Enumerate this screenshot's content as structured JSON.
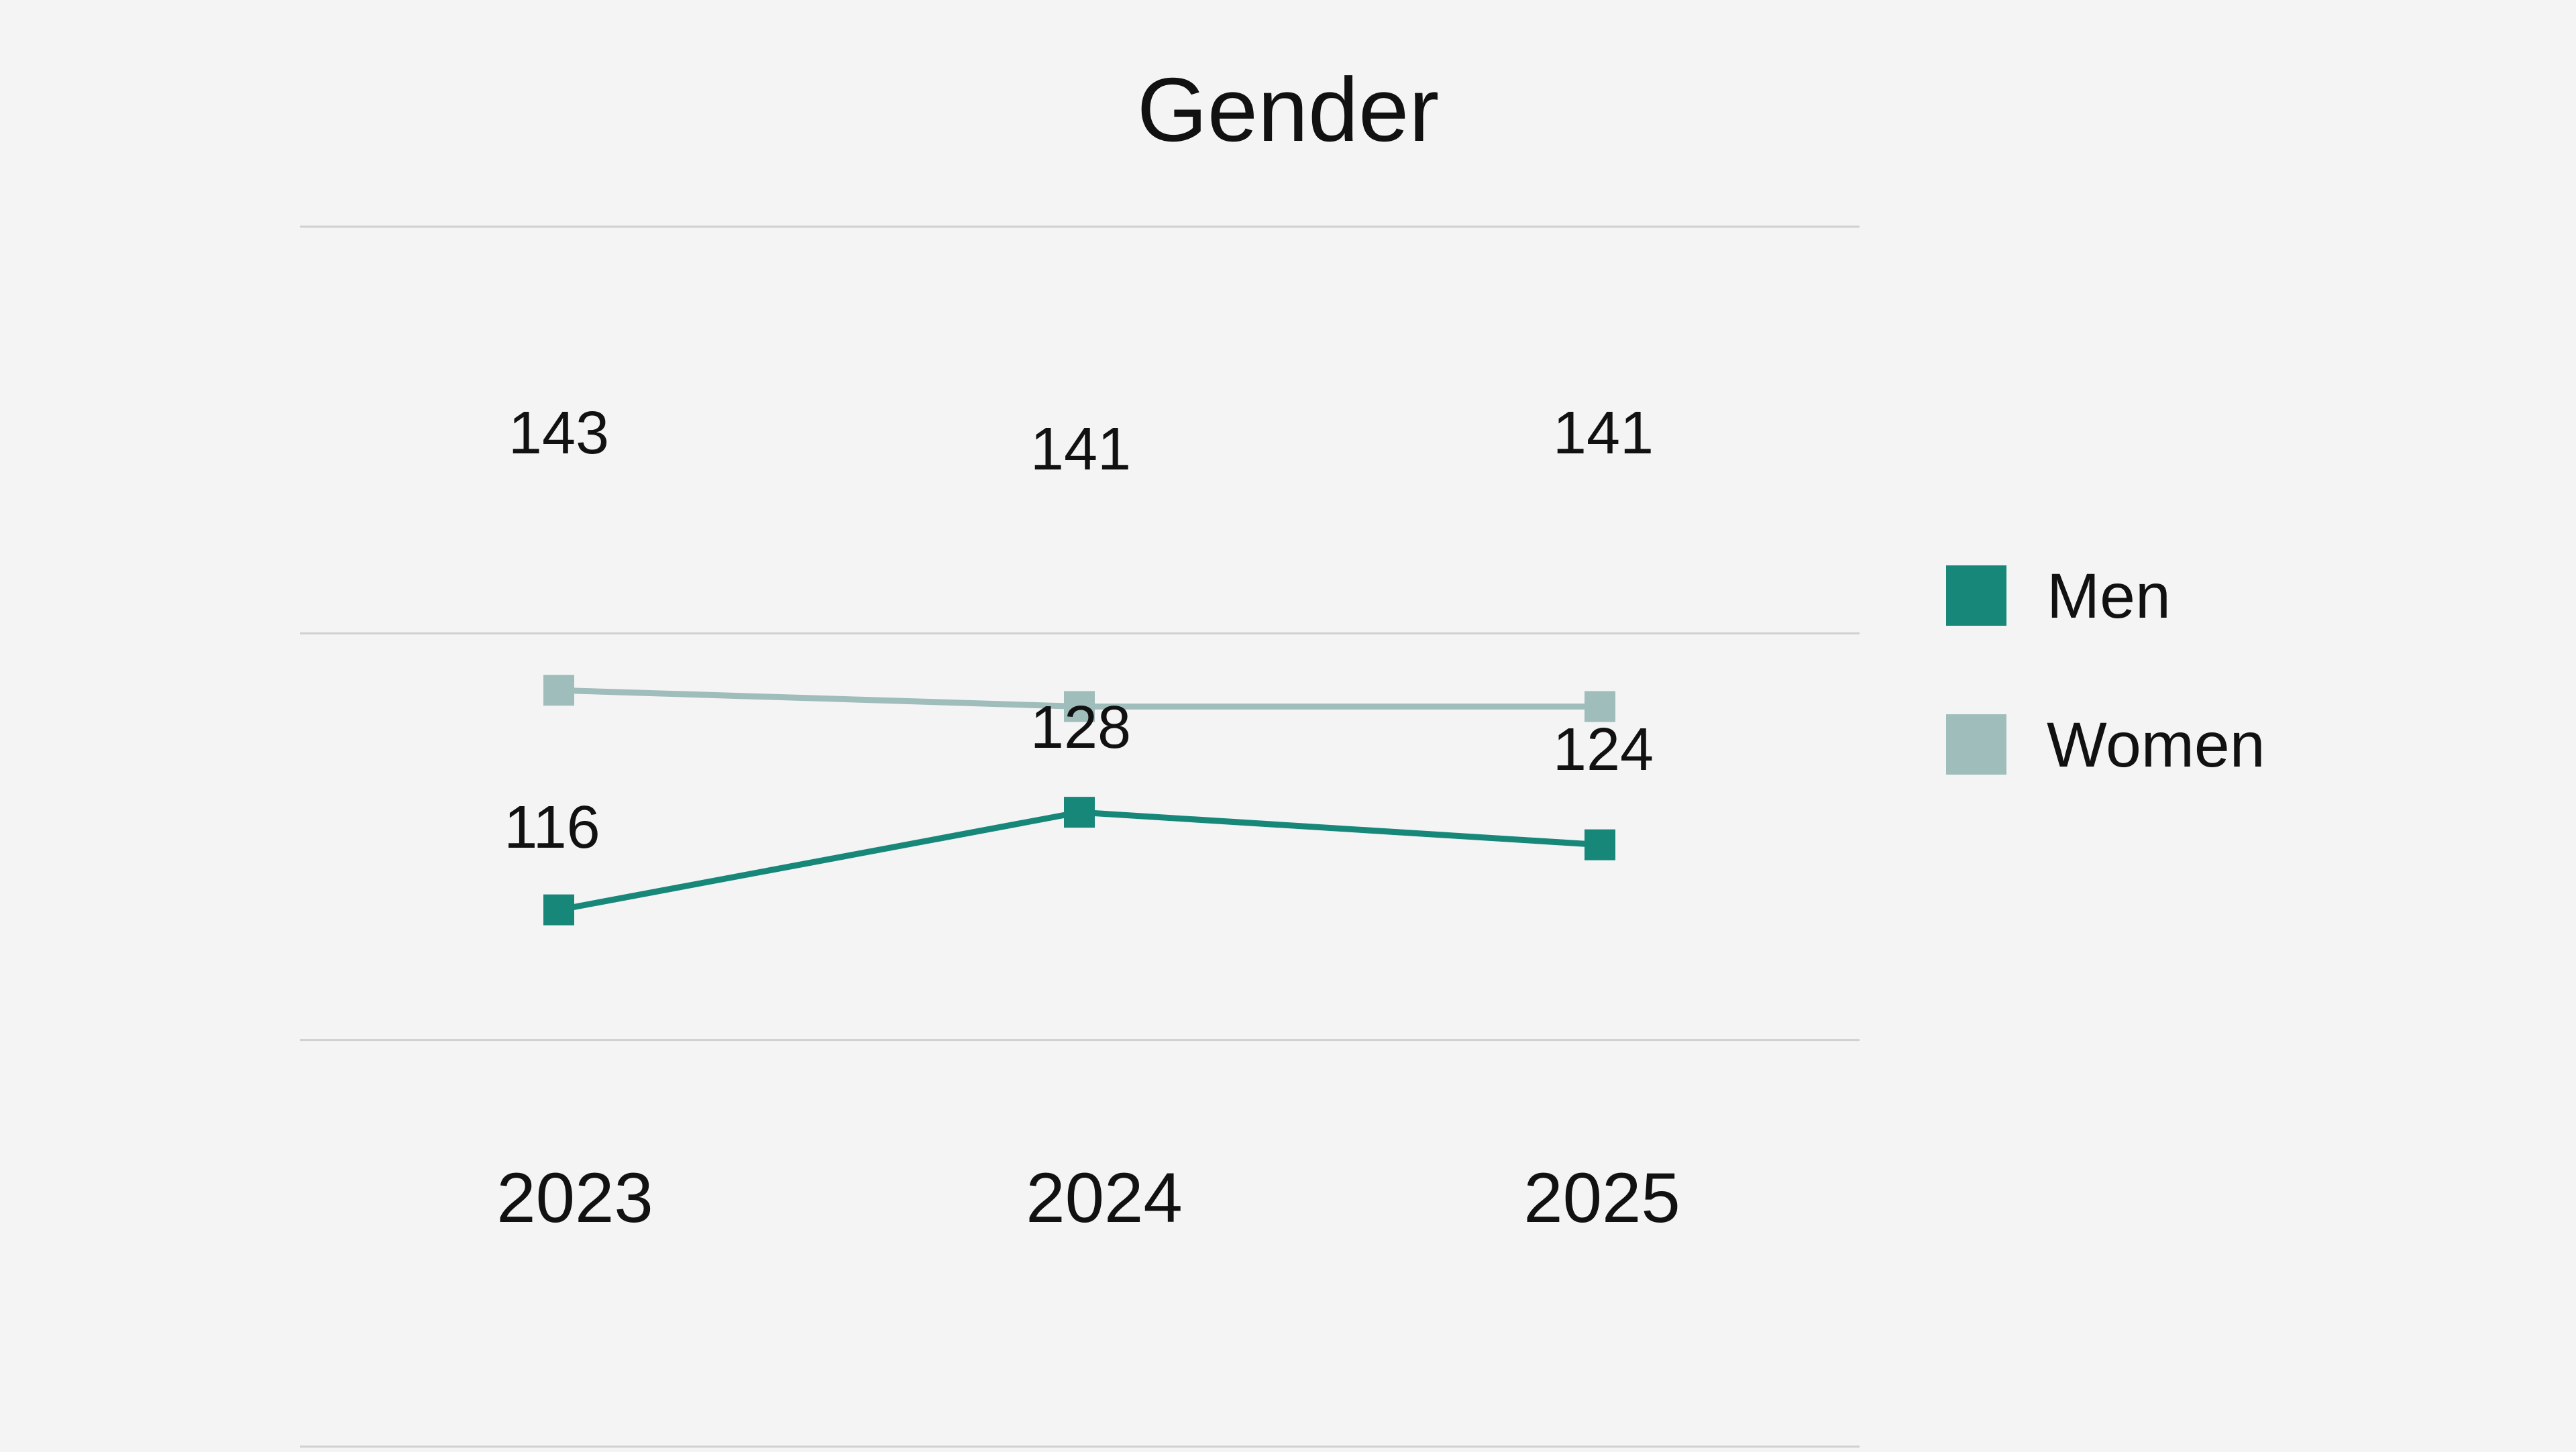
{
  "chart_data": {
    "type": "line",
    "title": "Gender",
    "xlabel": "",
    "ylabel": "",
    "categories": [
      "2023",
      "2024",
      "2025"
    ],
    "series": [
      {
        "name": "Men",
        "values": [
          116,
          128,
          124
        ],
        "color": "#17877a"
      },
      {
        "name": "Women",
        "values": [
          143,
          141,
          141
        ],
        "color": "#9fbdbb"
      }
    ],
    "ylim": [
      50,
      200
    ],
    "grid": true,
    "legend": "right",
    "data_labels": {
      "Men": [
        "116",
        "128",
        "124"
      ],
      "Women": [
        "143",
        "141",
        "141"
      ]
    },
    "colors": {
      "background": "#f4f4f4",
      "grid": "#d0d0d0",
      "text": "#111111"
    }
  }
}
